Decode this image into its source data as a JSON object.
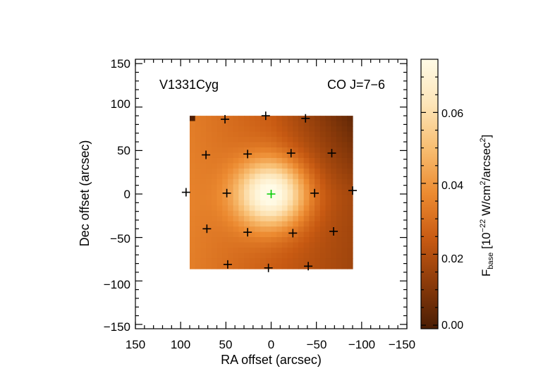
{
  "chart_data": {
    "type": "heatmap",
    "source_label": "V1331Cyg",
    "line_label": "CO J=7−6",
    "xlabel": "RA offset (arcsec)",
    "ylabel": "Dec offset (arcsec)",
    "xlim": [
      150,
      -150
    ],
    "ylim": [
      -155,
      155
    ],
    "x_ticks": [
      150,
      100,
      50,
      0,
      -50,
      -100,
      -150
    ],
    "x_tick_labels": [
      "150",
      "100",
      "50",
      "0",
      "−50",
      "−100",
      "−150"
    ],
    "y_ticks": [
      150,
      100,
      50,
      0,
      -50,
      -100,
      -150
    ],
    "y_tick_labels": [
      "150",
      "100",
      "50",
      "0",
      "−50",
      "−100",
      "−150"
    ],
    "map_extent": {
      "x": [
        90,
        -90
      ],
      "y": [
        -86,
        90
      ]
    },
    "peak": {
      "x": 0,
      "y": 0,
      "value": 0.075
    },
    "colorbar": {
      "label_main": "F",
      "label_sub": "base",
      "label_rest": " [10",
      "label_exp": "−22",
      "label_unit": " W/cm",
      "label_unit_exp": "2",
      "label_unit2": "/arcsec",
      "label_unit2_exp": "2",
      "label_close": "]",
      "range": [
        -0.001,
        0.075
      ],
      "ticks": [
        0.0,
        0.02,
        0.04,
        0.06
      ],
      "tick_labels": [
        "0.00",
        "0.02",
        "0.04",
        "0.06"
      ],
      "colormap": [
        "#4a1d04",
        "#8a3a0a",
        "#c85a12",
        "#ec8a30",
        "#f8bd70",
        "#fde5b8",
        "#fffbe6"
      ]
    },
    "spaxels": [
      {
        "x": 94,
        "y": 2
      },
      {
        "x": 51,
        "y": 86
      },
      {
        "x": 6,
        "y": 90
      },
      {
        "x": -38,
        "y": 87
      },
      {
        "x": 72,
        "y": 45
      },
      {
        "x": 26,
        "y": 46
      },
      {
        "x": -22,
        "y": 47
      },
      {
        "x": -67,
        "y": 47
      },
      {
        "x": 49,
        "y": 1
      },
      {
        "x": -48,
        "y": 1
      },
      {
        "x": -90,
        "y": 4
      },
      {
        "x": 71,
        "y": -40
      },
      {
        "x": 26,
        "y": -44
      },
      {
        "x": -24,
        "y": -45
      },
      {
        "x": -69,
        "y": -43
      },
      {
        "x": 48,
        "y": -81
      },
      {
        "x": 3,
        "y": -85
      },
      {
        "x": -41,
        "y": -83
      }
    ],
    "central_spaxel": {
      "x": 0,
      "y": 0,
      "color": "#00cc00"
    }
  }
}
